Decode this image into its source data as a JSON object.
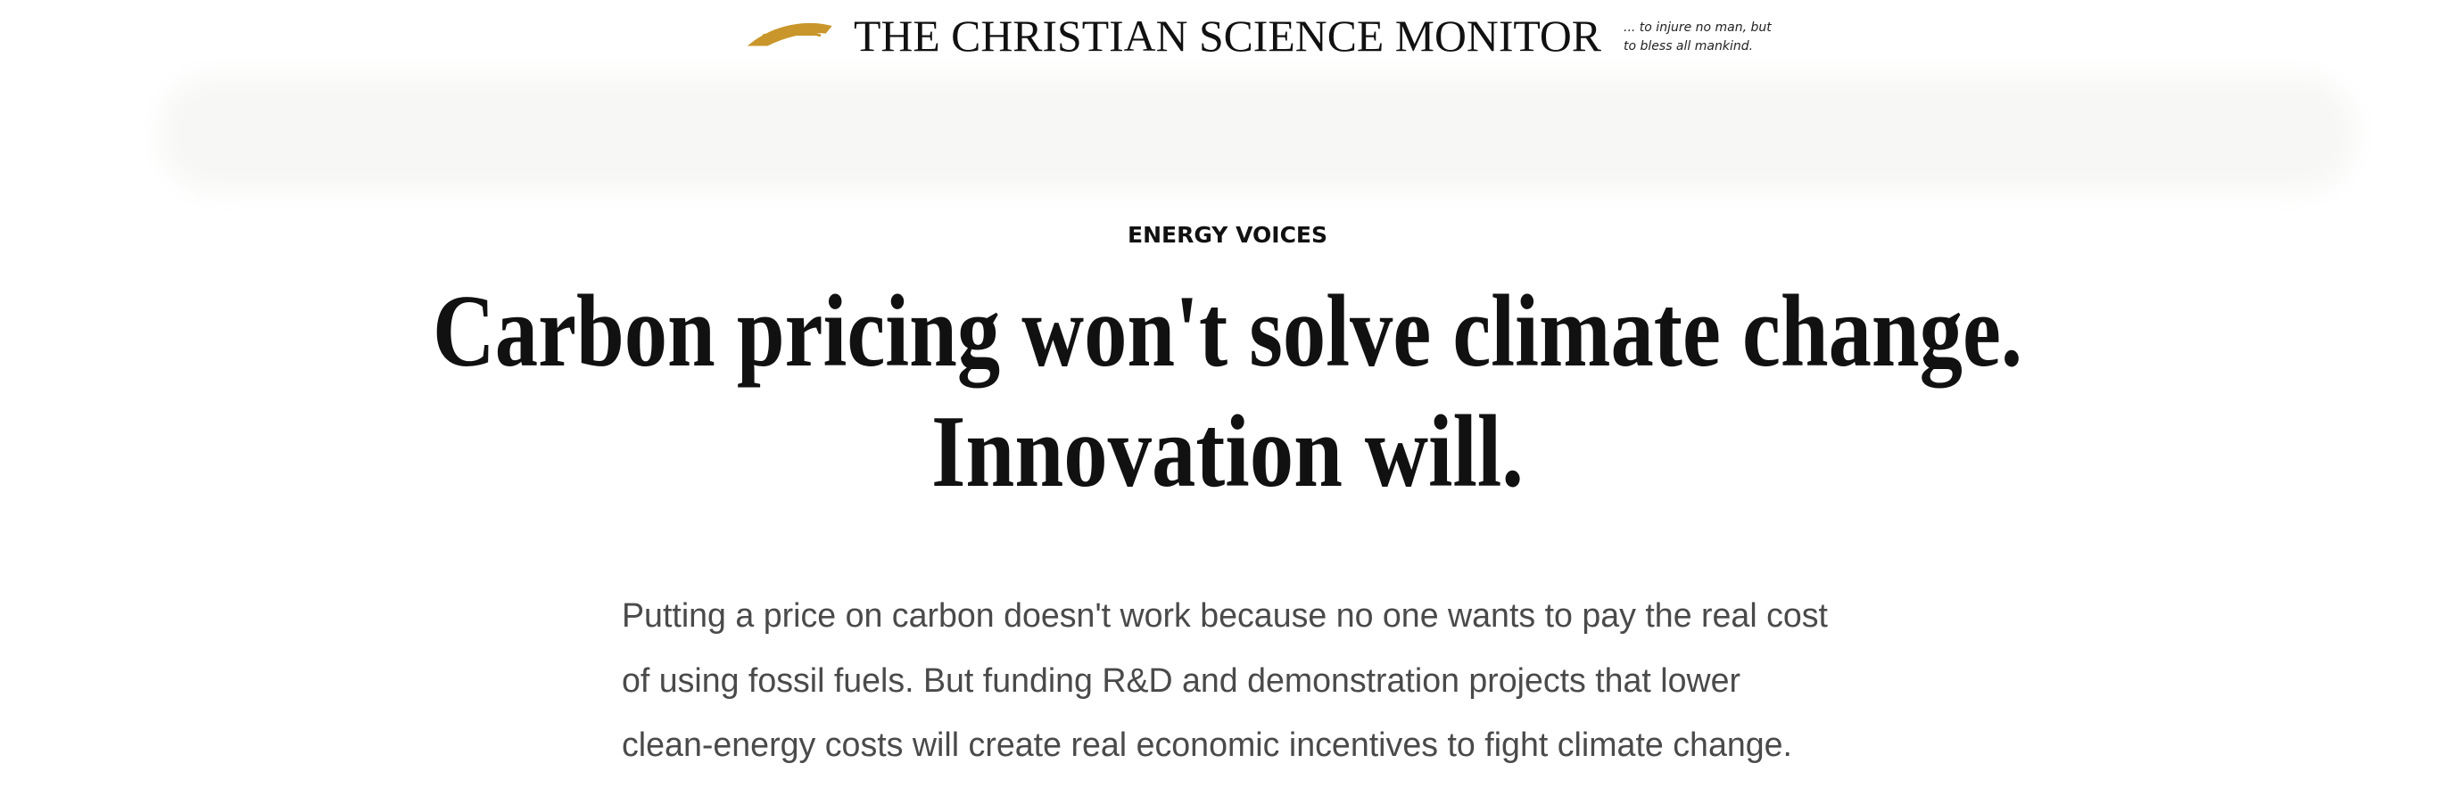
{
  "masthead": {
    "title": "THE CHRISTIAN SCIENCE MONITOR",
    "tagline": [
      "... to injure no man, but",
      "to bless all mankind."
    ]
  },
  "article": {
    "section": "ENERGY VOICES",
    "headline": [
      "Carbon pricing won't solve climate change.",
      "Innovation will."
    ],
    "summary": [
      "Putting a price on carbon doesn't work because no one wants to pay the real cost",
      "of using fossil fuels. But funding R&D and demonstration projects that lower",
      "clean-energy costs will create real economic incentives to fight climate change."
    ]
  }
}
